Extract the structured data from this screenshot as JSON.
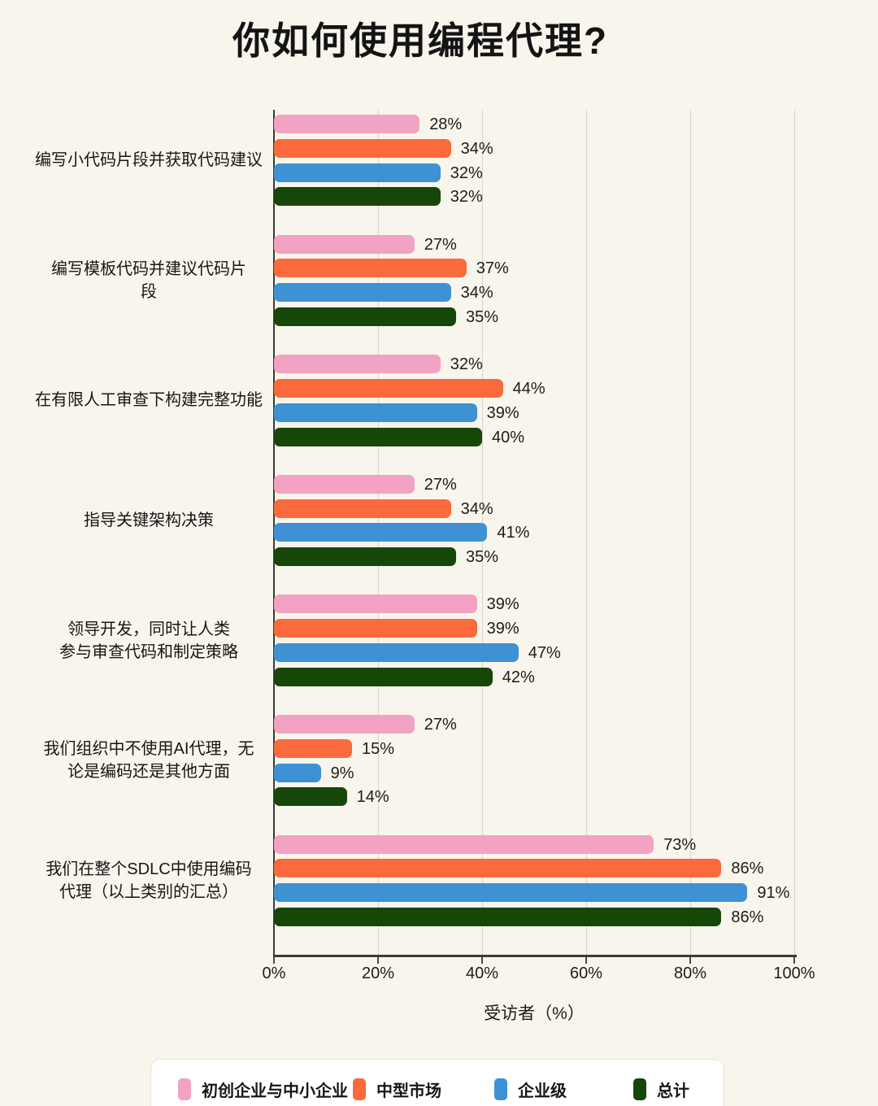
{
  "title": "你如何使用编程代理?",
  "chart_data": {
    "type": "bar",
    "orientation": "horizontal",
    "title": "你如何使用编程代理?",
    "xlabel": "受访者（%）",
    "xlim": [
      0,
      100
    ],
    "x_ticks": [
      "0%",
      "20%",
      "40%",
      "60%",
      "80%",
      "100%"
    ],
    "value_suffix": "%",
    "grid": true,
    "legend_position": "bottom",
    "categories": [
      {
        "lines": [
          "编写小代码片段并获取代码建议"
        ]
      },
      {
        "lines": [
          "编写模板代码并建议代码片",
          "段"
        ]
      },
      {
        "lines": [
          "在有限人工审查下构建完整功能"
        ]
      },
      {
        "lines": [
          "指导关键架构决策"
        ]
      },
      {
        "lines": [
          "领导开发，同时让人类",
          "参与审查代码和制定策略"
        ]
      },
      {
        "lines": [
          "我们组织中不使用AI代理，无",
          "论是编码还是其他方面"
        ]
      },
      {
        "lines": [
          "我们在整个SDLC中使用编码",
          "代理（以上类别的汇总）"
        ]
      }
    ],
    "series": [
      {
        "key": "startups-smb",
        "name": "初创企业与中小企业",
        "color": "#f2a3c3",
        "values": [
          28,
          27,
          32,
          27,
          39,
          27,
          73
        ]
      },
      {
        "key": "mid-market",
        "name": "中型市场",
        "color": "#fb6a3c",
        "values": [
          34,
          37,
          44,
          34,
          39,
          15,
          86
        ]
      },
      {
        "key": "enterprise",
        "name": "企业级",
        "color": "#3e92d3",
        "values": [
          32,
          34,
          39,
          41,
          47,
          9,
          91
        ]
      },
      {
        "key": "total",
        "name": "总计",
        "color": "#174708",
        "values": [
          32,
          35,
          40,
          35,
          42,
          14,
          86
        ]
      }
    ]
  },
  "colors": {
    "background": "#f8f5ec",
    "axis": "#3a3a3a",
    "gridline": "#d7d4ca",
    "text": "#161616",
    "legend_background": "#ffffff",
    "legend_border": "#e7e2d4"
  }
}
